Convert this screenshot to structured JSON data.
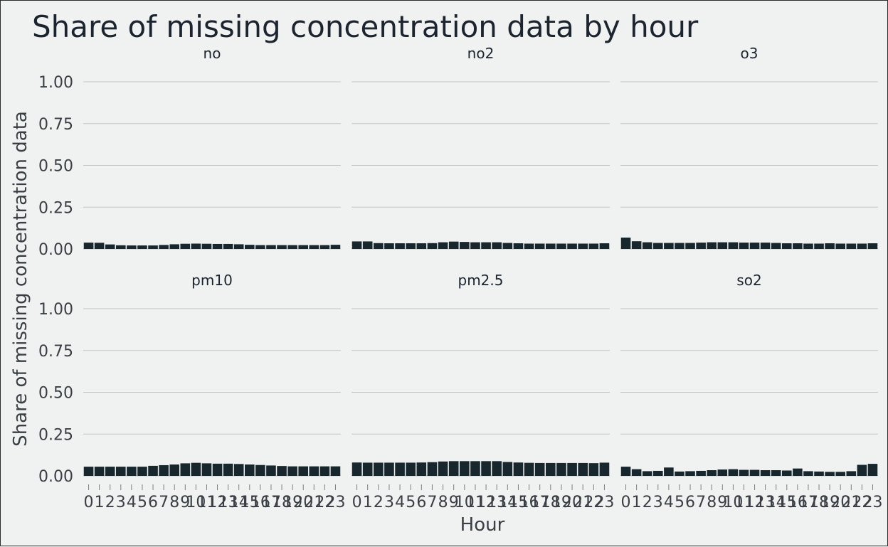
{
  "chart_data": {
    "type": "bar",
    "title": "Share of missing concentration data by hour",
    "xlabel": "Hour",
    "ylabel": "Share of missing concentration data",
    "ylim": [
      0,
      1
    ],
    "yticks": [
      "0.00",
      "0.25",
      "0.50",
      "0.75",
      "1.00"
    ],
    "categories": [
      "0",
      "1",
      "2",
      "3",
      "4",
      "5",
      "6",
      "7",
      "8",
      "9",
      "10",
      "11",
      "12",
      "13",
      "14",
      "15",
      "16",
      "17",
      "18",
      "19",
      "20",
      "21",
      "22",
      "23"
    ],
    "bar_color": "#18262e",
    "grid": true,
    "panels": [
      {
        "name": "no",
        "values": [
          0.038,
          0.037,
          0.027,
          0.022,
          0.021,
          0.021,
          0.021,
          0.024,
          0.028,
          0.031,
          0.032,
          0.031,
          0.03,
          0.03,
          0.028,
          0.025,
          0.023,
          0.023,
          0.023,
          0.023,
          0.023,
          0.023,
          0.023,
          0.025
        ]
      },
      {
        "name": "no2",
        "values": [
          0.045,
          0.045,
          0.035,
          0.034,
          0.034,
          0.034,
          0.034,
          0.035,
          0.04,
          0.044,
          0.042,
          0.04,
          0.04,
          0.04,
          0.036,
          0.034,
          0.032,
          0.032,
          0.032,
          0.032,
          0.032,
          0.032,
          0.032,
          0.034
        ]
      },
      {
        "name": "o3",
        "values": [
          0.068,
          0.046,
          0.04,
          0.036,
          0.036,
          0.036,
          0.036,
          0.038,
          0.04,
          0.04,
          0.04,
          0.038,
          0.038,
          0.038,
          0.036,
          0.034,
          0.034,
          0.032,
          0.032,
          0.034,
          0.032,
          0.032,
          0.032,
          0.034
        ]
      },
      {
        "name": "pm10",
        "values": [
          0.055,
          0.055,
          0.055,
          0.055,
          0.055,
          0.055,
          0.06,
          0.064,
          0.068,
          0.075,
          0.078,
          0.075,
          0.073,
          0.073,
          0.071,
          0.068,
          0.065,
          0.062,
          0.059,
          0.057,
          0.057,
          0.057,
          0.057,
          0.057
        ]
      },
      {
        "name": "pm2.5",
        "values": [
          0.08,
          0.079,
          0.079,
          0.079,
          0.079,
          0.079,
          0.08,
          0.082,
          0.086,
          0.088,
          0.088,
          0.088,
          0.088,
          0.088,
          0.083,
          0.08,
          0.078,
          0.077,
          0.077,
          0.077,
          0.077,
          0.077,
          0.076,
          0.079
        ]
      },
      {
        "name": "so2",
        "values": [
          0.055,
          0.04,
          0.028,
          0.03,
          0.05,
          0.026,
          0.028,
          0.03,
          0.034,
          0.038,
          0.04,
          0.036,
          0.036,
          0.034,
          0.034,
          0.032,
          0.044,
          0.028,
          0.026,
          0.024,
          0.024,
          0.028,
          0.066,
          0.072
        ]
      }
    ]
  }
}
